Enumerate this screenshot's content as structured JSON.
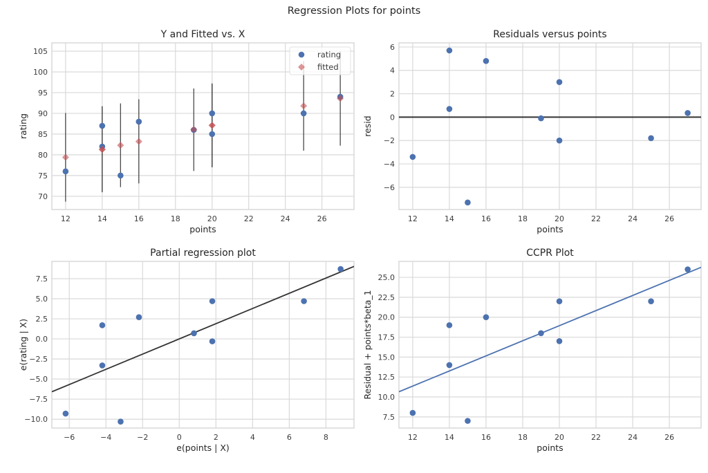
{
  "suptitle": "Regression Plots for points",
  "colors": {
    "points": "#4c72b0",
    "fitted": "#dd8452",
    "fitted_marker": "#d9807e",
    "line_dark": "#333333",
    "ccpr_line": "#4c72b0",
    "grid": "#d9d9d9"
  },
  "chart_data": [
    {
      "type": "scatter",
      "title": "Y and Fitted vs. X",
      "xlabel": "points",
      "ylabel": "rating",
      "xlim": [
        11.25,
        27.75
      ],
      "ylim": [
        66.8,
        107
      ],
      "xticks": [
        12,
        14,
        16,
        18,
        20,
        22,
        24,
        26
      ],
      "yticks": [
        70,
        75,
        80,
        85,
        90,
        95,
        100,
        105
      ],
      "grid": true,
      "legend": {
        "position": "top-right",
        "entries": [
          "rating",
          "fitted"
        ]
      },
      "x": [
        12,
        14,
        14,
        15,
        16,
        19,
        20,
        20,
        25,
        27
      ],
      "series": [
        {
          "name": "rating",
          "marker": "circle",
          "values": [
            76,
            87,
            82,
            75,
            88,
            86,
            90,
            85,
            90,
            94
          ]
        },
        {
          "name": "fitted",
          "marker": "diamond",
          "values": [
            79.4,
            81.3,
            81.3,
            82.3,
            83.2,
            86.1,
            87.1,
            87.1,
            91.8,
            93.6
          ]
        }
      ],
      "intervals": {
        "lower": [
          68.7,
          71.0,
          71.0,
          72.2,
          73.1,
          76.1,
          77.0,
          77.0,
          81.0,
          82.2
        ],
        "upper": [
          90.1,
          91.7,
          91.7,
          92.4,
          93.4,
          96.0,
          97.2,
          97.2,
          102.6,
          105.0
        ]
      }
    },
    {
      "type": "scatter",
      "title": "Residuals versus points",
      "xlabel": "points",
      "ylabel": "resid",
      "xlim": [
        11.25,
        27.73
      ],
      "ylim": [
        -7.9,
        6.35
      ],
      "xticks": [
        12,
        14,
        16,
        18,
        20,
        22,
        24,
        26
      ],
      "yticks": [
        -6,
        -4,
        -2,
        0,
        2,
        4,
        6
      ],
      "grid": true,
      "hline": 0,
      "x": [
        12,
        14,
        14,
        15,
        16,
        19,
        20,
        20,
        25,
        27
      ],
      "y": [
        -3.4,
        5.7,
        0.7,
        -7.3,
        4.8,
        -0.1,
        3.0,
        -2.0,
        -1.8,
        0.35
      ]
    },
    {
      "type": "scatter",
      "title": "Partial regression plot",
      "xlabel": "e(points | X)",
      "ylabel": "e(rating | X)",
      "xlim": [
        -6.95,
        9.53
      ],
      "ylim": [
        -11.1,
        9.65
      ],
      "xticks": [
        -6,
        -4,
        -2,
        0,
        2,
        4,
        6,
        8
      ],
      "yticks": [
        -10.0,
        -7.5,
        -5.0,
        -2.5,
        0.0,
        2.5,
        5.0,
        7.5
      ],
      "ytick_labels": [
        "−10.0",
        "−7.5",
        "−5.0",
        "−2.5",
        "0.0",
        "2.5",
        "5.0",
        "7.5"
      ],
      "xtick_labels": [
        "−6",
        "−4",
        "−2",
        "0",
        "2",
        "4",
        "6",
        "8"
      ],
      "grid": true,
      "x": [
        -6.2,
        -4.2,
        -4.2,
        -3.2,
        -2.2,
        0.8,
        1.8,
        1.8,
        6.8,
        8.8
      ],
      "y": [
        -9.3,
        1.7,
        -3.3,
        -10.3,
        2.7,
        0.7,
        4.7,
        -0.3,
        4.7,
        8.7
      ],
      "fit_line": {
        "slope": 0.947,
        "intercept": 0
      }
    },
    {
      "type": "scatter",
      "title": "CCPR Plot",
      "xlabel": "points",
      "ylabel": "Residual + points*beta_1",
      "xlim": [
        11.25,
        27.73
      ],
      "ylim": [
        6.1,
        27.0
      ],
      "xticks": [
        12,
        14,
        16,
        18,
        20,
        22,
        24,
        26
      ],
      "yticks": [
        7.5,
        10.0,
        12.5,
        15.0,
        17.5,
        20.0,
        22.5,
        25.0
      ],
      "ytick_labels": [
        "7.5",
        "10.0",
        "12.5",
        "15.0",
        "17.5",
        "20.0",
        "22.5",
        "25.0"
      ],
      "grid": true,
      "x": [
        12,
        14,
        14,
        15,
        16,
        19,
        20,
        20,
        25,
        27
      ],
      "y": [
        8.0,
        19.0,
        14.0,
        7.0,
        20.0,
        18.0,
        22.0,
        17.0,
        22.0,
        26.0
      ],
      "fit_line": {
        "slope": 0.947,
        "intercept": 0
      }
    }
  ]
}
